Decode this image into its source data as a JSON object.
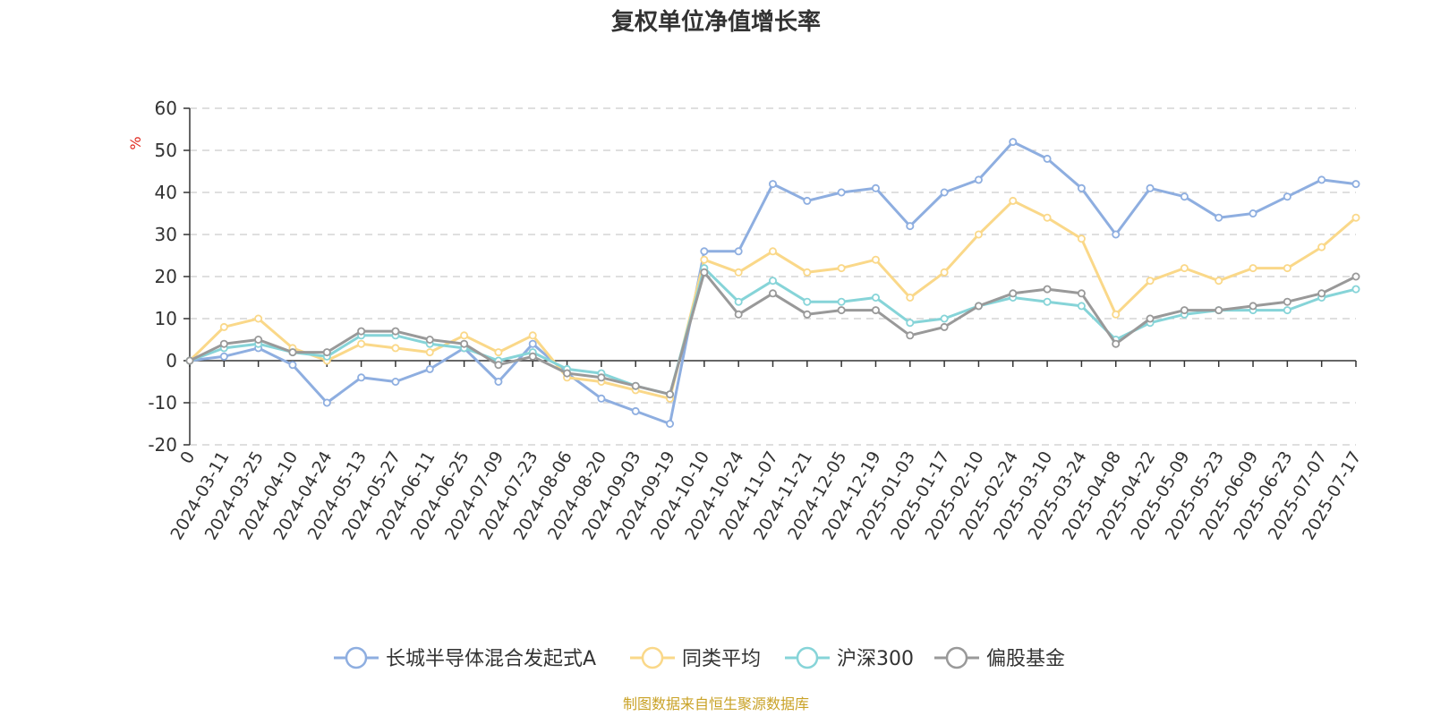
{
  "chart_data": {
    "type": "line",
    "title": "复权单位净值增长率",
    "ylabel": "%",
    "ylim": [
      -20,
      60
    ],
    "yticks": [
      60,
      50,
      40,
      30,
      20,
      10,
      0,
      -10,
      -20
    ],
    "grid": true,
    "legend_position": "bottom",
    "source": "制图数据来自恒生聚源数据库",
    "x": [
      "0",
      "2024-03-11",
      "2024-03-25",
      "2024-04-10",
      "2024-04-24",
      "2024-05-13",
      "2024-05-27",
      "2024-06-11",
      "2024-06-25",
      "2024-07-09",
      "2024-07-23",
      "2024-08-06",
      "2024-08-20",
      "2024-09-03",
      "2024-09-19",
      "2024-10-10",
      "2024-10-24",
      "2024-11-07",
      "2024-11-21",
      "2024-12-05",
      "2024-12-19",
      "2025-01-03",
      "2025-01-17",
      "2025-02-10",
      "2025-02-24",
      "2025-03-10",
      "2025-03-24",
      "2025-04-08",
      "2025-04-22",
      "2025-05-09",
      "2025-05-23",
      "2025-06-09",
      "2025-06-23",
      "2025-07-07",
      "2025-07-17"
    ],
    "series": [
      {
        "name": "长城半导体混合发起式A",
        "color": "#8eaee0",
        "values": [
          0,
          1,
          3,
          -1,
          -10,
          -4,
          -5,
          -2,
          3,
          -5,
          4,
          -3,
          -9,
          -12,
          -15,
          26,
          26,
          42,
          38,
          40,
          41,
          32,
          40,
          43,
          52,
          48,
          41,
          30,
          41,
          39,
          34,
          35,
          39,
          43,
          42
        ]
      },
      {
        "name": "同类平均",
        "color": "#fad889",
        "values": [
          0,
          8,
          10,
          3,
          0,
          4,
          3,
          2,
          6,
          2,
          6,
          -4,
          -5,
          -7,
          -9,
          24,
          21,
          26,
          21,
          22,
          24,
          15,
          21,
          30,
          38,
          34,
          29,
          11,
          19,
          22,
          19,
          22,
          22,
          27,
          34
        ]
      },
      {
        "name": "沪深300",
        "color": "#86d4d8",
        "values": [
          0,
          3,
          4,
          2,
          1,
          6,
          6,
          4,
          3,
          0,
          2,
          -2,
          -3,
          -6,
          -8,
          22,
          14,
          19,
          14,
          14,
          15,
          9,
          10,
          13,
          15,
          14,
          13,
          5,
          9,
          11,
          12,
          12,
          12,
          15,
          17
        ]
      },
      {
        "name": "偏股基金",
        "color": "#999999",
        "values": [
          0,
          4,
          5,
          2,
          2,
          7,
          7,
          5,
          4,
          -1,
          1,
          -3,
          -4,
          -6,
          -8,
          21,
          11,
          16,
          11,
          12,
          12,
          6,
          8,
          13,
          16,
          17,
          16,
          4,
          10,
          12,
          12,
          13,
          14,
          16,
          20
        ]
      }
    ]
  }
}
